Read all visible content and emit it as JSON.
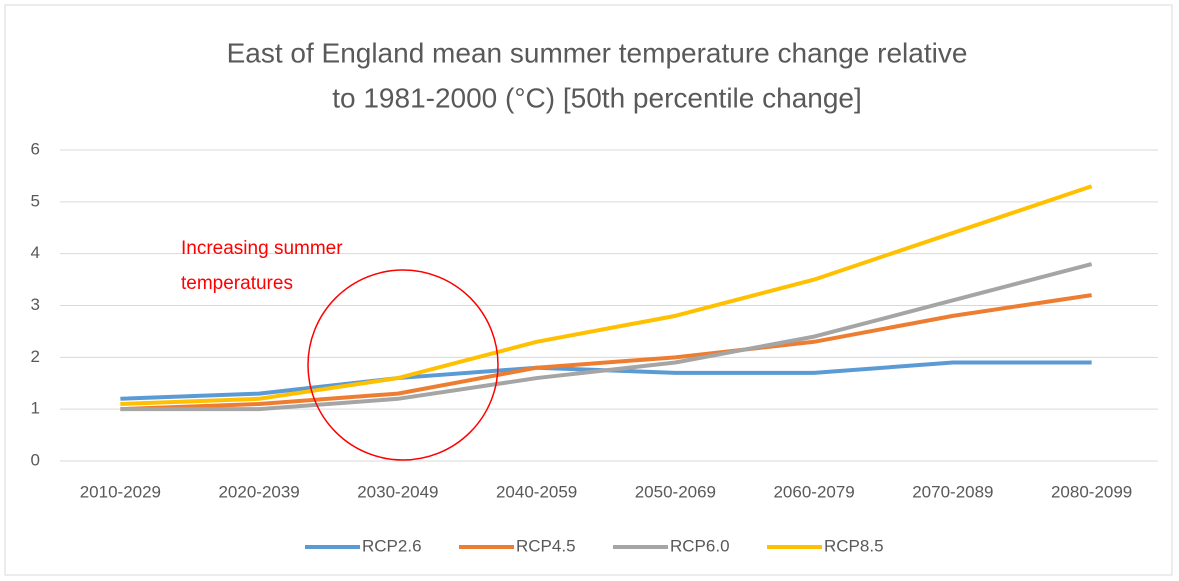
{
  "chart_data": {
    "type": "line",
    "title": [
      "East of England mean summer temperature change relative",
      "to 1981-2000 (°C) [50th percentile change]"
    ],
    "annotation": [
      "Increasing summer",
      "temperatures"
    ],
    "categories": [
      "2010-2029",
      "2020-2039",
      "2030-2049",
      "2040-2059",
      "2050-2069",
      "2060-2079",
      "2070-2089",
      "2080-2099"
    ],
    "series": [
      {
        "name": "RCP2.6",
        "color": "#5b9bd5",
        "values": [
          1.2,
          1.3,
          1.6,
          1.8,
          1.7,
          1.7,
          1.9,
          1.9
        ]
      },
      {
        "name": "RCP4.5",
        "color": "#ed7d31",
        "values": [
          1.0,
          1.1,
          1.3,
          1.8,
          2.0,
          2.3,
          2.8,
          3.2
        ]
      },
      {
        "name": "RCP6.0",
        "color": "#a5a5a5",
        "values": [
          1.0,
          1.0,
          1.2,
          1.6,
          1.9,
          2.4,
          3.1,
          3.8
        ]
      },
      {
        "name": "RCP8.5",
        "color": "#ffc000",
        "values": [
          1.1,
          1.2,
          1.6,
          2.3,
          2.8,
          3.5,
          4.4,
          5.3
        ]
      }
    ],
    "ylim": [
      0,
      6
    ],
    "yticks": [
      0,
      1,
      2,
      3,
      4,
      5,
      6
    ],
    "grid": true,
    "legend": "bottom"
  }
}
